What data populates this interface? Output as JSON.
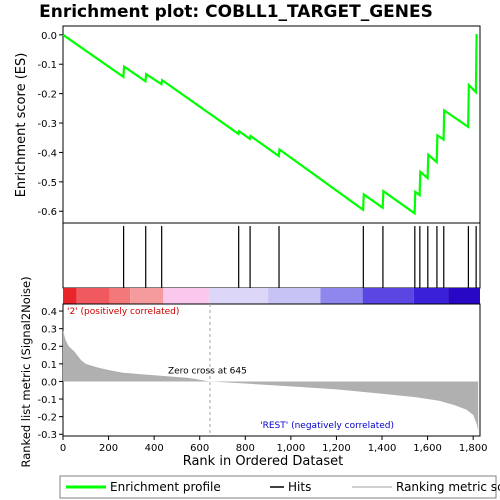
{
  "chart_data": {
    "type": "line",
    "title": "Enrichment plot: COBLL1_TARGET_GENES",
    "xlabel": "Rank in Ordered Dataset",
    "xlim": [
      0,
      1830
    ],
    "x_ticks": [
      0,
      200,
      400,
      600,
      800,
      1000,
      1200,
      1400,
      1600,
      1800
    ],
    "x_tick_labels": [
      "0",
      "200",
      "400",
      "600",
      "800",
      "1,000",
      "1,200",
      "1,400",
      "1,600",
      "1,800"
    ],
    "es_panel": {
      "ylabel": "Enrichment score (ES)",
      "ylim": [
        -0.64,
        0.03
      ],
      "y_ticks": [
        0.0,
        -0.1,
        -0.2,
        -0.3,
        -0.4,
        -0.5,
        -0.6
      ],
      "y_tick_labels": [
        "0.0",
        "-0.1",
        "-0.2",
        "-0.3",
        "-0.4",
        "-0.5",
        "-0.6"
      ],
      "color": "#00ff00",
      "points": [
        [
          0,
          0.0
        ],
        [
          265,
          -0.143
        ],
        [
          268,
          -0.108
        ],
        [
          362,
          -0.158
        ],
        [
          365,
          -0.134
        ],
        [
          432,
          -0.168
        ],
        [
          435,
          -0.154
        ],
        [
          770,
          -0.337
        ],
        [
          773,
          -0.328
        ],
        [
          820,
          -0.354
        ],
        [
          823,
          -0.344
        ],
        [
          947,
          -0.412
        ],
        [
          950,
          -0.39
        ],
        [
          1317,
          -0.595
        ],
        [
          1320,
          -0.543
        ],
        [
          1403,
          -0.588
        ],
        [
          1406,
          -0.532
        ],
        [
          1543,
          -0.607
        ],
        [
          1546,
          -0.534
        ],
        [
          1565,
          -0.545
        ],
        [
          1568,
          -0.466
        ],
        [
          1600,
          -0.487
        ],
        [
          1603,
          -0.408
        ],
        [
          1640,
          -0.433
        ],
        [
          1643,
          -0.342
        ],
        [
          1670,
          -0.356
        ],
        [
          1673,
          -0.257
        ],
        [
          1778,
          -0.313
        ],
        [
          1781,
          -0.171
        ],
        [
          1812,
          -0.195
        ],
        [
          1815,
          0.003
        ]
      ]
    },
    "hits": {
      "positions": [
        266,
        363,
        433,
        771,
        821,
        948,
        1318,
        1404,
        1544,
        1566,
        1601,
        1641,
        1671,
        1779,
        1813
      ],
      "color": "#000000"
    },
    "color_bar": {
      "segments": [
        {
          "from": 0,
          "to": 60,
          "color": "#e8252a"
        },
        {
          "from": 60,
          "to": 205,
          "color": "#f05a5e"
        },
        {
          "from": 205,
          "to": 295,
          "color": "#f27879"
        },
        {
          "from": 295,
          "to": 440,
          "color": "#f59b9e"
        },
        {
          "from": 440,
          "to": 640,
          "color": "#f9c8ec"
        },
        {
          "from": 640,
          "to": 900,
          "color": "#dcd6f8"
        },
        {
          "from": 900,
          "to": 1130,
          "color": "#c7c3f5"
        },
        {
          "from": 1130,
          "to": 1315,
          "color": "#8f86ee"
        },
        {
          "from": 1315,
          "to": 1540,
          "color": "#5a47e3"
        },
        {
          "from": 1540,
          "to": 1690,
          "color": "#3a20d8"
        },
        {
          "from": 1690,
          "to": 1830,
          "color": "#2808c4"
        }
      ]
    },
    "metric_panel": {
      "ylabel": "Ranked list metric (Signal2Noise)",
      "ylim": [
        -0.31,
        0.44
      ],
      "y_ticks": [
        0.4,
        0.3,
        0.2,
        0.1,
        0.0,
        -0.1,
        -0.2,
        -0.3
      ],
      "y_tick_labels": [
        "0.4",
        "0.3",
        "0.2",
        "0.1",
        "0.0",
        "-0.1",
        "-0.2",
        "-0.3"
      ],
      "color": "#b0b0b0",
      "points": [
        [
          0,
          0.29
        ],
        [
          10,
          0.24
        ],
        [
          25,
          0.2
        ],
        [
          50,
          0.17
        ],
        [
          80,
          0.12
        ],
        [
          100,
          0.1
        ],
        [
          150,
          0.08
        ],
        [
          200,
          0.065
        ],
        [
          260,
          0.05
        ],
        [
          350,
          0.04
        ],
        [
          450,
          0.03
        ],
        [
          550,
          0.02
        ],
        [
          645,
          0.0
        ],
        [
          800,
          -0.012
        ],
        [
          1000,
          -0.028
        ],
        [
          1200,
          -0.045
        ],
        [
          1400,
          -0.07
        ],
        [
          1550,
          -0.09
        ],
        [
          1650,
          -0.11
        ],
        [
          1720,
          -0.135
        ],
        [
          1770,
          -0.16
        ],
        [
          1800,
          -0.19
        ],
        [
          1815,
          -0.24
        ],
        [
          1822,
          -0.28
        ]
      ],
      "zero_cross": 645,
      "zero_cross_label": "Zero cross at 645",
      "pos_label": "'2' (positively correlated)",
      "pos_label_color": "#cc0000",
      "neg_label": "'REST' (negatively correlated)",
      "neg_label_color": "#0000cc"
    },
    "legend": {
      "placement": "bottom",
      "items": [
        {
          "label": "Enrichment profile",
          "color": "#00ff00",
          "style": "thick-line"
        },
        {
          "label": "Hits",
          "color": "#000000",
          "style": "line"
        },
        {
          "label": "Ranking metric scores",
          "color": "#c0c0c0",
          "style": "line"
        }
      ]
    }
  }
}
